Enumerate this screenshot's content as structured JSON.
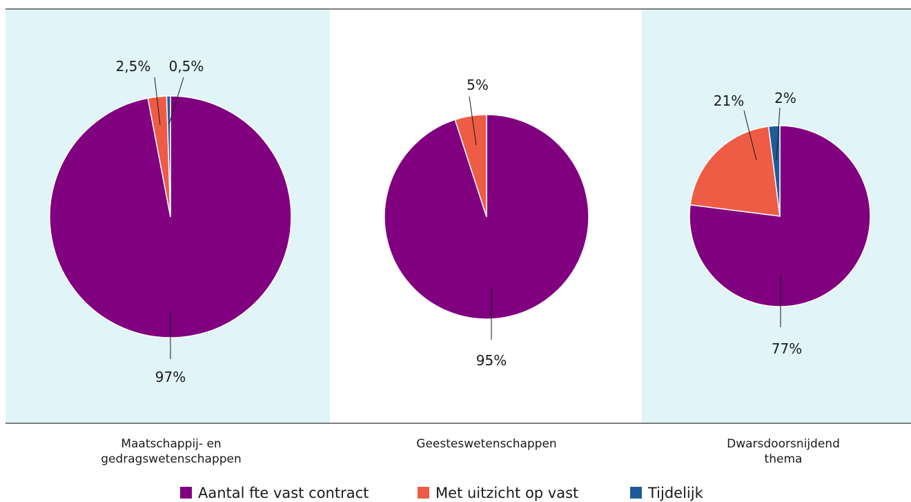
{
  "chart_data": {
    "type": "pie",
    "series": [
      {
        "name": "Aantal fte vast contract",
        "color": "#800080"
      },
      {
        "name": "Met uitzicht op vast",
        "color": "#ee5c45"
      },
      {
        "name": "Tijdelijk",
        "color": "#1f5b99"
      }
    ],
    "charts": [
      {
        "category": "Maatschappij- en gedragswetenschappen",
        "values": [
          97,
          2.5,
          0.5
        ],
        "labels": [
          "97%",
          "2,5%",
          "0,5%"
        ],
        "shaded": true
      },
      {
        "category": "Geesteswetenschappen",
        "values": [
          95,
          5,
          0
        ],
        "labels": [
          "95%",
          "5%",
          ""
        ],
        "shaded": false
      },
      {
        "category": "Dwarsdoornsnijdend thema",
        "values": [
          77,
          21,
          2
        ],
        "labels": [
          "77%",
          "21%",
          "2%"
        ],
        "shaded": true
      }
    ],
    "legend_position": "bottom"
  },
  "panels": {
    "shade_color": "#e1f4f8"
  },
  "categories": {
    "c1_line1": "Maatschappij- en",
    "c1_line2": "gedragswetenschappen",
    "c2_line1": "Geesteswetenschappen",
    "c3_line1": "Dwarsdoorsnijdend",
    "c3_line2": "thema"
  },
  "legend": {
    "item1": "Aantal fte vast contract",
    "item2": "Met uitzicht op vast",
    "item3": "Tijdelijk"
  }
}
